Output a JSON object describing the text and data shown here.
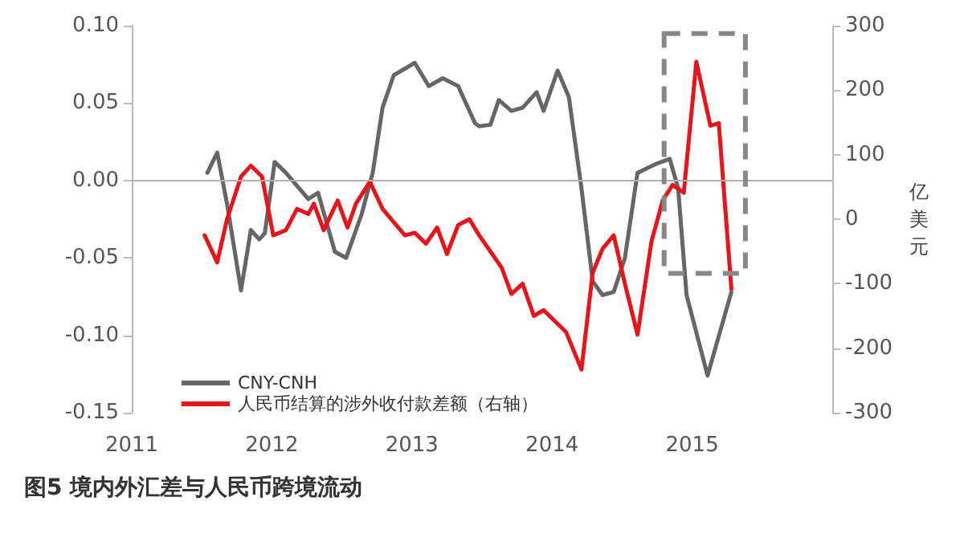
{
  "chart_data": {
    "type": "line",
    "title": "图5 境内外汇差与人民币跨境流动",
    "y2label": "亿美元",
    "xlim": [
      2011,
      2016
    ],
    "xticks": [
      2011,
      2012,
      2013,
      2014,
      2015
    ],
    "ylim": [
      -0.15,
      0.1
    ],
    "yticks": [
      {
        "value": -0.15,
        "label": "-0.15"
      },
      {
        "value": -0.1,
        "label": "-0.10"
      },
      {
        "value": -0.05,
        "label": "-0.05"
      },
      {
        "value": 0,
        "label": "0.00"
      },
      {
        "value": 0.05,
        "label": "0.05"
      },
      {
        "value": 0.1,
        "label": "0.10"
      }
    ],
    "y2lim": [
      -300,
      300
    ],
    "y2ticks": [
      -300,
      -200,
      -100,
      0,
      100,
      200,
      300
    ],
    "series": [
      {
        "name": "CNY-CNH",
        "color": "#666666",
        "x": [
          2011.54,
          2011.61,
          2011.68,
          2011.78,
          2011.85,
          2011.91,
          2011.95,
          2012.02,
          2012.1,
          2012.26,
          2012.33,
          2012.45,
          2012.53,
          2012.64,
          2012.72,
          2012.79,
          2012.87,
          2013.02,
          2013.12,
          2013.22,
          2013.33,
          2013.45,
          2013.48,
          2013.56,
          2013.62,
          2013.71,
          2013.79,
          2013.89,
          2013.94,
          2014.04,
          2014.12,
          2014.21,
          2014.29,
          2014.36,
          2014.44,
          2014.52,
          2014.61,
          2014.75,
          2014.84,
          2014.9,
          2014.96,
          2015.11,
          2015.28
        ],
        "values": [
          0.005,
          0.018,
          -0.015,
          -0.071,
          -0.032,
          -0.038,
          -0.034,
          0.012,
          0.005,
          -0.012,
          -0.008,
          -0.046,
          -0.05,
          -0.022,
          0.005,
          0.047,
          0.068,
          0.076,
          0.061,
          0.066,
          0.061,
          0.037,
          0.035,
          0.036,
          0.052,
          0.045,
          0.047,
          0.057,
          0.045,
          0.071,
          0.054,
          -0.005,
          -0.065,
          -0.074,
          -0.072,
          -0.05,
          0.005,
          0.011,
          0.014,
          -0.005,
          -0.074,
          -0.126,
          -0.072
        ]
      },
      {
        "name": "人民币结算的涉外收付款差额（右轴）",
        "color": "#e8141b",
        "axis": "y2",
        "x": [
          2011.52,
          2011.61,
          2011.68,
          2011.78,
          2011.85,
          2011.93,
          2012.01,
          2012.1,
          2012.18,
          2012.26,
          2012.3,
          2012.37,
          2012.47,
          2012.54,
          2012.6,
          2012.7,
          2012.79,
          2012.95,
          2013.02,
          2013.1,
          2013.18,
          2013.25,
          2013.33,
          2013.41,
          2013.48,
          2013.64,
          2013.71,
          2013.79,
          2013.87,
          2013.94,
          2014.02,
          2014.1,
          2014.21,
          2014.29,
          2014.36,
          2014.44,
          2014.52,
          2014.61,
          2014.71,
          2014.79,
          2014.86,
          2014.94,
          2015.03,
          2015.13,
          2015.19,
          2015.28
        ],
        "values": [
          -25,
          -67,
          0,
          66,
          83,
          66,
          -25,
          -17,
          16,
          8,
          24,
          -17,
          29,
          -13,
          24,
          58,
          16,
          -25,
          -21,
          -38,
          -13,
          -54,
          -9,
          0,
          -25,
          -75,
          -116,
          -100,
          -150,
          -141,
          -158,
          -175,
          -233,
          -83,
          -46,
          -25,
          -100,
          -179,
          -34,
          29,
          53,
          41,
          244,
          145,
          149,
          -108
        ]
      }
    ],
    "ref_lines": [
      {
        "axis": "y",
        "value": 0,
        "color": "#b0b0b0"
      }
    ],
    "legend": "bottom left",
    "grid": false,
    "marker": "none",
    "line_style": "solid"
  }
}
